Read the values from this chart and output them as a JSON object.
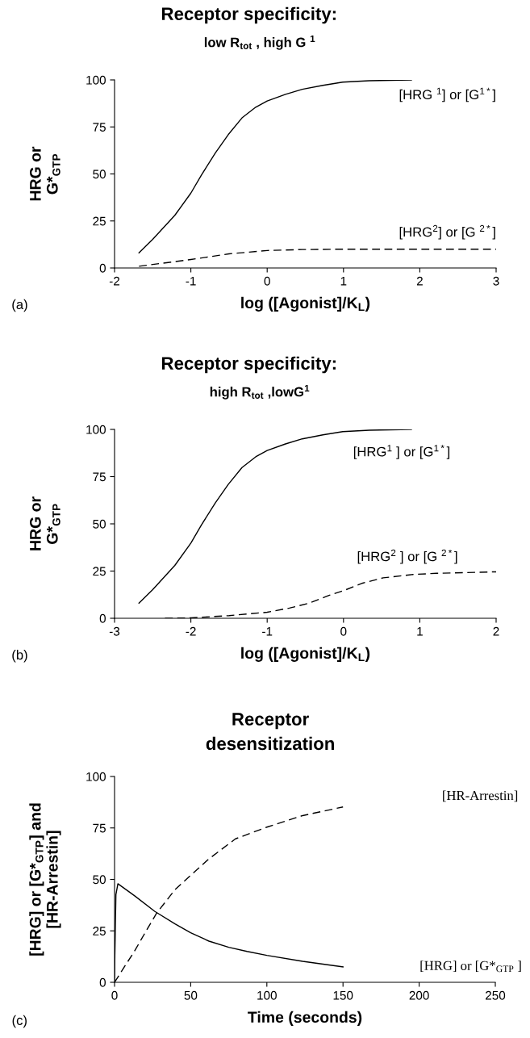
{
  "chart_data": [
    {
      "type": "line",
      "title": "Receptor specificity:",
      "subtitle": "low R$_{tot}$ , high G $^{1}$",
      "xlabel": "log ([Agonist]/K$_{L}$)",
      "ylabel": "HRG or\nG*$_{GTP}$",
      "annotations": [
        "(a)"
      ],
      "xlim": [
        -2,
        3
      ],
      "xticks": [
        -2,
        -1,
        0,
        1,
        2,
        3
      ],
      "ylim": [
        0,
        100
      ],
      "yticks": [
        0,
        25,
        50,
        75,
        100
      ],
      "series": [
        {
          "name": "[HRG $^{1}$] or [G$^{1*}$]",
          "color": "#000000",
          "line_style": "solid",
          "x": [
            -1.68,
            -1.5,
            -1.21,
            -1.0,
            -0.86,
            -0.68,
            -0.51,
            -0.33,
            -0.15,
            0.0,
            0.24,
            0.46,
            0.73,
            0.99,
            1.34,
            1.89
          ],
          "values": [
            8.0,
            15.2,
            28.0,
            39.8,
            49.5,
            61.1,
            70.9,
            79.8,
            85.5,
            88.8,
            92.3,
            95.0,
            97.1,
            98.8,
            99.6,
            100
          ]
        },
        {
          "name": "[HRG$^{2}$] or [G $^{2*}$]",
          "color": "#000000",
          "line_style": "dashed",
          "x": [
            -1.68,
            -1.0,
            -0.5,
            0.0,
            0.46,
            1.0,
            3.0
          ],
          "values": [
            0.9,
            4.5,
            7.5,
            9.3,
            9.8,
            10,
            10
          ]
        }
      ]
    },
    {
      "type": "line",
      "title": "Receptor specificity:",
      "subtitle": "high R$_{tot}$ ,lowG$^{1}$",
      "xlabel": "log ([Agonist]/K$_{L}$)",
      "ylabel": "HRG or\nG*$_{GTP}$",
      "annotations": [
        "(b)"
      ],
      "xlim": [
        -3,
        2
      ],
      "xticks": [
        -3,
        -2,
        -1,
        0,
        1,
        2
      ],
      "ylim": [
        0,
        100
      ],
      "yticks": [
        0,
        25,
        50,
        75,
        100
      ],
      "series": [
        {
          "name": "[HRG$^{1}$ ] or [G$^{1*}$]",
          "color": "#000000",
          "line_style": "solid",
          "x": [
            -2.68,
            -2.5,
            -2.21,
            -2.0,
            -1.86,
            -1.68,
            -1.51,
            -1.33,
            -1.15,
            -1.0,
            -0.76,
            -0.54,
            -0.27,
            -0.01,
            0.34,
            0.89
          ],
          "values": [
            8.0,
            15.2,
            28.0,
            39.8,
            49.5,
            61.1,
            70.9,
            79.8,
            85.5,
            88.8,
            92.3,
            95.0,
            97.1,
            98.8,
            99.6,
            100
          ]
        },
        {
          "name": "[HRG$^{2}$ ] or [G $^{2*}$]",
          "color": "#000000",
          "line_style": "dashed",
          "x": [
            -2.34,
            -2.0,
            -1.5,
            -1.0,
            -0.71,
            -0.45,
            -0.19,
            0.0,
            0.25,
            0.52,
            0.91,
            1.22,
            2.0
          ],
          "values": [
            0,
            0.2,
            1.4,
            3.2,
            5.4,
            8.0,
            12.1,
            14.6,
            18.6,
            21.4,
            23.2,
            23.8,
            24.6
          ]
        }
      ]
    },
    {
      "type": "line",
      "title": "Receptor\ndesensitization",
      "xlabel": "Time (seconds)",
      "ylabel": "[HRG] or [G*$_{GTP}$] and\n[HR-Arrestin]",
      "annotations": [
        "(c)"
      ],
      "xlim": [
        0,
        250
      ],
      "xticks": [
        0,
        50,
        100,
        150,
        200,
        250
      ],
      "ylim": [
        0,
        100
      ],
      "yticks": [
        0,
        25,
        50,
        75,
        100
      ],
      "series": [
        {
          "name": "[HR-Arrestin]",
          "color": "#000000",
          "line_style": "dashed",
          "x": [
            0,
            6,
            13,
            20,
            27.6,
            39.7,
            50,
            62,
            79.4,
            100,
            123.5,
            150
          ],
          "values": [
            0,
            7,
            15,
            24,
            33.6,
            45,
            52,
            60,
            69.7,
            75.4,
            81,
            85.2
          ]
        },
        {
          "name": "[HRG] or [G*$_{GTP}$ ]",
          "color": "#000000",
          "line_style": "solid",
          "x": [
            0,
            0.2,
            0.9,
            2.2,
            13.2,
            26.5,
            39.7,
            50,
            62,
            75,
            87,
            100,
            123.5,
            150
          ],
          "values": [
            0,
            13,
            42.6,
            47.9,
            42,
            34.4,
            28.4,
            24.1,
            20,
            17,
            15,
            13.1,
            10.2,
            7.5
          ]
        }
      ]
    }
  ]
}
